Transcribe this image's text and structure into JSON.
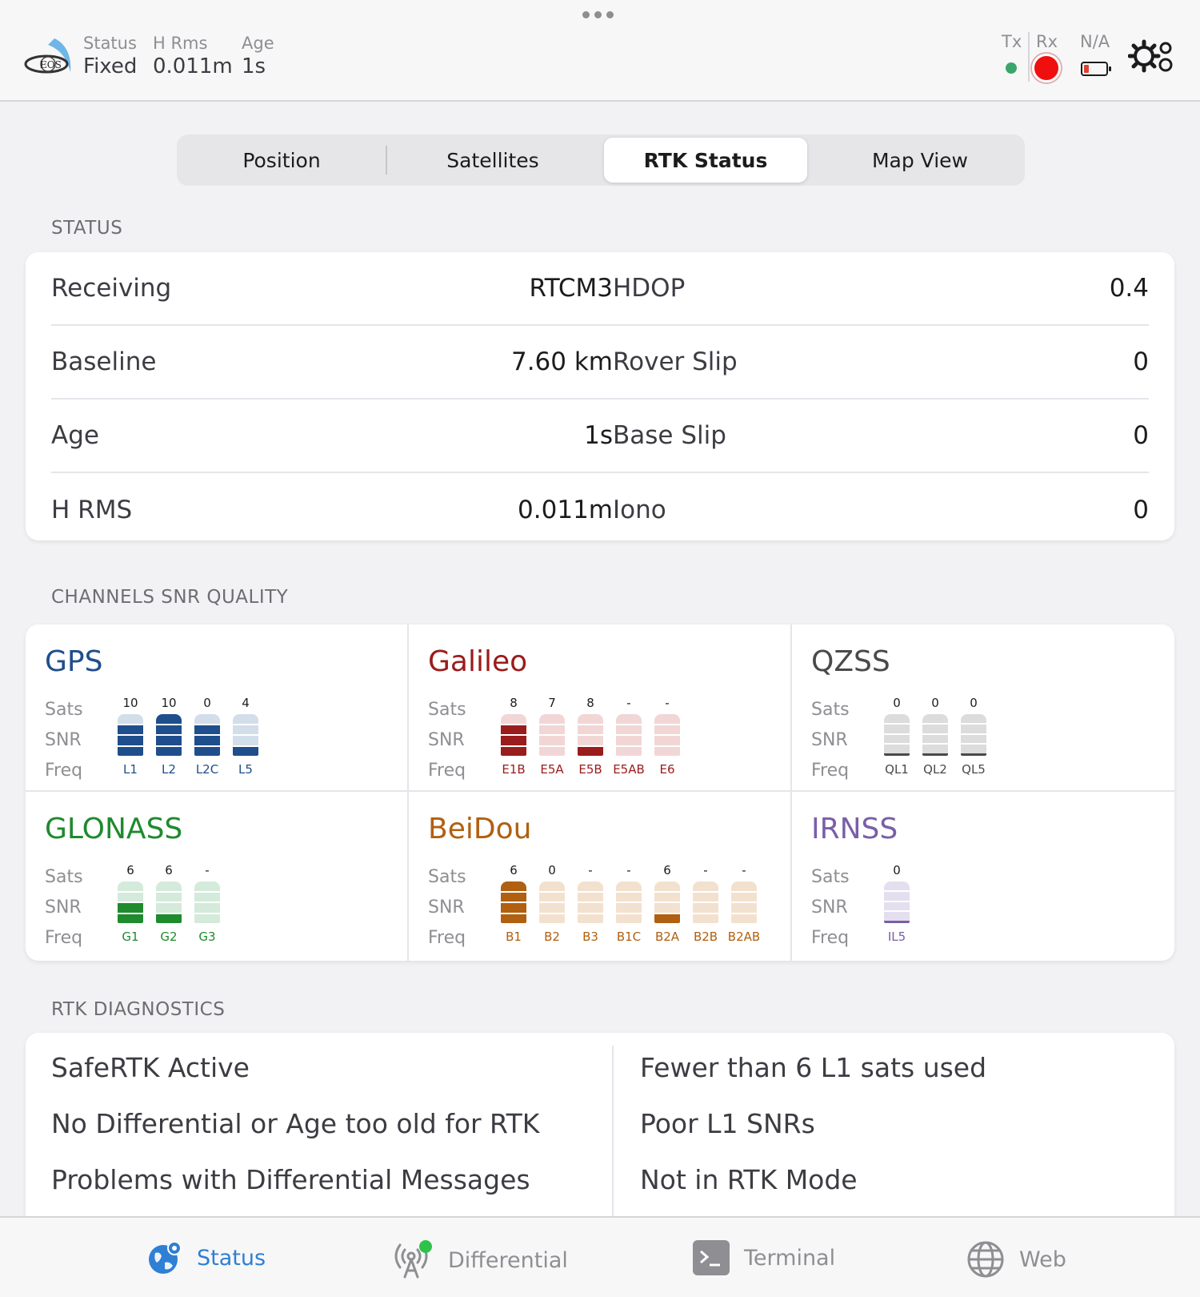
{
  "header": {
    "status_label": "Status",
    "status_value": "Fixed",
    "hrms_label": "H Rms",
    "hrms_value": "0.011m",
    "age_label": "Age",
    "age_value": "1s",
    "tx_label": "Tx",
    "rx_label": "Rx",
    "battery_label": "N/A",
    "logo_text": "EOS",
    "icons": [
      "eos-logo-icon",
      "battery-icon",
      "settings-gears-icon"
    ]
  },
  "tabs": [
    {
      "label": "Position",
      "active": false
    },
    {
      "label": "Satellites",
      "active": false
    },
    {
      "label": "RTK Status",
      "active": true
    },
    {
      "label": "Map View",
      "active": false
    }
  ],
  "status_section": {
    "title": "STATUS",
    "left": [
      {
        "key": "Receiving",
        "value": "RTCM3"
      },
      {
        "key": "Baseline",
        "value": "7.60 km"
      },
      {
        "key": "Age",
        "value": "1s"
      },
      {
        "key": "H RMS",
        "value": "0.011m"
      }
    ],
    "right": [
      {
        "key": "HDOP",
        "value": "0.4"
      },
      {
        "key": "Rover Slip",
        "value": "0"
      },
      {
        "key": "Base Slip",
        "value": "0"
      },
      {
        "key": "Iono",
        "value": "0"
      }
    ]
  },
  "snr_section": {
    "title": "CHANNELS SNR QUALITY",
    "row_labels": {
      "sats": "Sats",
      "snr": "SNR",
      "freq": "Freq"
    },
    "constellations": [
      {
        "name": "GPS",
        "color": "#1f4e8c",
        "light": "#d3deeb",
        "channels": [
          {
            "freq": "L1",
            "sats": "10",
            "level": 3
          },
          {
            "freq": "L2",
            "sats": "10",
            "level": 4
          },
          {
            "freq": "L2C",
            "sats": "0",
            "level": 3
          },
          {
            "freq": "L5",
            "sats": "4",
            "level": 1
          }
        ]
      },
      {
        "name": "Galileo",
        "color": "#9a1c1c",
        "light": "#f2d6d6",
        "channels": [
          {
            "freq": "E1B",
            "sats": "8",
            "level": 3
          },
          {
            "freq": "E5A",
            "sats": "7",
            "level": 0
          },
          {
            "freq": "E5B",
            "sats": "8",
            "level": 1
          },
          {
            "freq": "E5AB",
            "sats": "-",
            "level": 0
          },
          {
            "freq": "E6",
            "sats": "-",
            "level": 0
          }
        ]
      },
      {
        "name": "QZSS",
        "color": "#4a4a4a",
        "light": "#dcdcdc",
        "channels": [
          {
            "freq": "QL1",
            "sats": "0",
            "level": 0
          },
          {
            "freq": "QL2",
            "sats": "0",
            "level": 0
          },
          {
            "freq": "QL5",
            "sats": "0",
            "level": 0
          }
        ]
      },
      {
        "name": "GLONASS",
        "color": "#1f8a2e",
        "light": "#d4eadb",
        "channels": [
          {
            "freq": "G1",
            "sats": "6",
            "level": 2
          },
          {
            "freq": "G2",
            "sats": "6",
            "level": 1
          },
          {
            "freq": "G3",
            "sats": "-",
            "level": 0
          }
        ]
      },
      {
        "name": "BeiDou",
        "color": "#b06010",
        "light": "#f3e1cf",
        "channels": [
          {
            "freq": "B1",
            "sats": "6",
            "level": 4
          },
          {
            "freq": "B2",
            "sats": "0",
            "level": 0
          },
          {
            "freq": "B3",
            "sats": "-",
            "level": 0
          },
          {
            "freq": "B1C",
            "sats": "-",
            "level": 0
          },
          {
            "freq": "B2A",
            "sats": "6",
            "level": 1
          },
          {
            "freq": "B2B",
            "sats": "-",
            "level": 0
          },
          {
            "freq": "B2AB",
            "sats": "-",
            "level": 0
          }
        ]
      },
      {
        "name": "IRNSS",
        "color": "#7a5ea8",
        "light": "#e4dfee",
        "channels": [
          {
            "freq": "IL5",
            "sats": "0",
            "level": 0
          }
        ]
      }
    ]
  },
  "diagnostics": {
    "title": "RTK DIAGNOSTICS",
    "left": [
      "SafeRTK Active",
      "No Differential or Age too old for RTK",
      "Problems with Differential Messages"
    ],
    "right": [
      "Fewer than 6 L1 sats used",
      "Poor L1 SNRs",
      "Not in RTK Mode"
    ]
  },
  "tabbar": [
    {
      "label": "Status",
      "icon": "globe-pin-icon",
      "active": true
    },
    {
      "label": "Differential",
      "icon": "antenna-icon",
      "active": false
    },
    {
      "label": "Terminal",
      "icon": "terminal-icon",
      "active": false
    },
    {
      "label": "Web",
      "icon": "web-globe-icon",
      "active": false
    }
  ]
}
